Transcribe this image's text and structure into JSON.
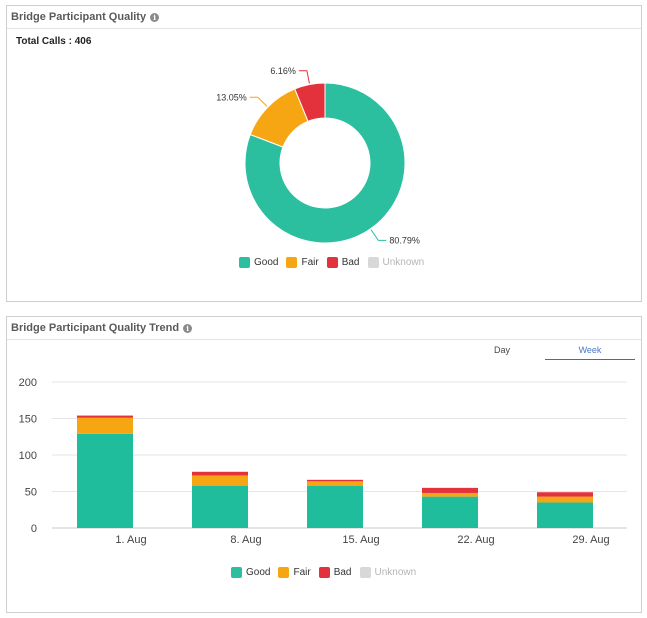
{
  "panel1": {
    "title": "Bridge Participant Quality",
    "total_label": "Total Calls : 406"
  },
  "panel2": {
    "title": "Bridge Participant Quality Trend",
    "tabs": [
      {
        "label": "Day",
        "active": false
      },
      {
        "label": "Week",
        "active": true
      }
    ]
  },
  "legend": [
    {
      "label": "Good",
      "color": "#2bbf9f"
    },
    {
      "label": "Fair",
      "color": "#f6a612"
    },
    {
      "label": "Bad",
      "color": "#e3323c"
    },
    {
      "label": "Unknown",
      "color": "#d8d8d8"
    }
  ],
  "chart_data": [
    {
      "type": "pie",
      "title": "",
      "categories": [
        "Good",
        "Fair",
        "Bad",
        "Unknown"
      ],
      "values": [
        80.79,
        13.05,
        6.16,
        0
      ],
      "labels": [
        "80.79%",
        "13.05%",
        "6.16%"
      ],
      "colors": [
        "#2bbf9f",
        "#f6a612",
        "#e3323c",
        "#d8d8d8"
      ],
      "legend_position": "bottom"
    },
    {
      "type": "bar",
      "stacked": true,
      "categories": [
        "1. Aug",
        "8. Aug",
        "15. Aug",
        "22. Aug",
        "29. Aug"
      ],
      "series": [
        {
          "name": "Good",
          "values": [
            129,
            58,
            58,
            43,
            35
          ],
          "color": "#1fbd9c"
        },
        {
          "name": "Fair",
          "values": [
            22,
            14,
            6,
            5,
            8
          ],
          "color": "#f6a612"
        },
        {
          "name": "Bad",
          "values": [
            3,
            5,
            2,
            7,
            6
          ],
          "color": "#e3323c"
        },
        {
          "name": "Unknown",
          "values": [
            0,
            0,
            0,
            0,
            0
          ],
          "color": "#d8d8d8"
        }
      ],
      "ylim": [
        0,
        200
      ],
      "yticks": [
        0,
        50,
        100,
        150,
        200
      ],
      "grid": true,
      "legend_position": "bottom"
    }
  ]
}
